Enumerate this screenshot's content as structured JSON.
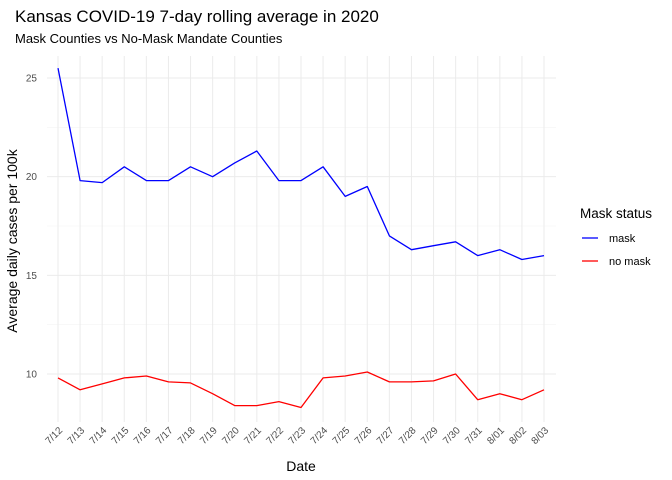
{
  "chart_data": {
    "type": "line",
    "title": "Kansas COVID-19 7-day rolling average in 2020",
    "subtitle": "Mask Counties vs No-Mask Mandate Counties",
    "xlabel": "Date",
    "ylabel": "Average daily cases per 100k",
    "categories": [
      "7/12",
      "7/13",
      "7/14",
      "7/15",
      "7/16",
      "7/17",
      "7/18",
      "7/19",
      "7/20",
      "7/21",
      "7/22",
      "7/23",
      "7/24",
      "7/25",
      "7/26",
      "7/27",
      "7/28",
      "7/29",
      "7/30",
      "7/31",
      "8/01",
      "8/02",
      "8/03"
    ],
    "yticks": [
      10,
      15,
      20,
      25
    ],
    "ylim": [
      7.5,
      26.0
    ],
    "grid": true,
    "legend": {
      "title": "Mask status",
      "position": "right"
    },
    "series": [
      {
        "name": "mask",
        "color": "#0000ff",
        "values": [
          25.5,
          19.8,
          19.7,
          20.5,
          19.8,
          19.8,
          20.5,
          20.0,
          20.7,
          21.3,
          19.8,
          19.8,
          20.5,
          19.0,
          19.5,
          17.0,
          16.3,
          16.5,
          16.7,
          16.0,
          16.3,
          15.8,
          16.0
        ]
      },
      {
        "name": "no mask",
        "color": "#ff0000",
        "values": [
          9.8,
          9.2,
          9.5,
          9.8,
          9.9,
          9.6,
          9.55,
          9.0,
          8.4,
          8.4,
          8.6,
          8.3,
          9.8,
          9.9,
          10.1,
          9.6,
          9.6,
          9.65,
          10.0,
          8.7,
          9.0,
          8.7,
          9.2
        ]
      }
    ]
  }
}
